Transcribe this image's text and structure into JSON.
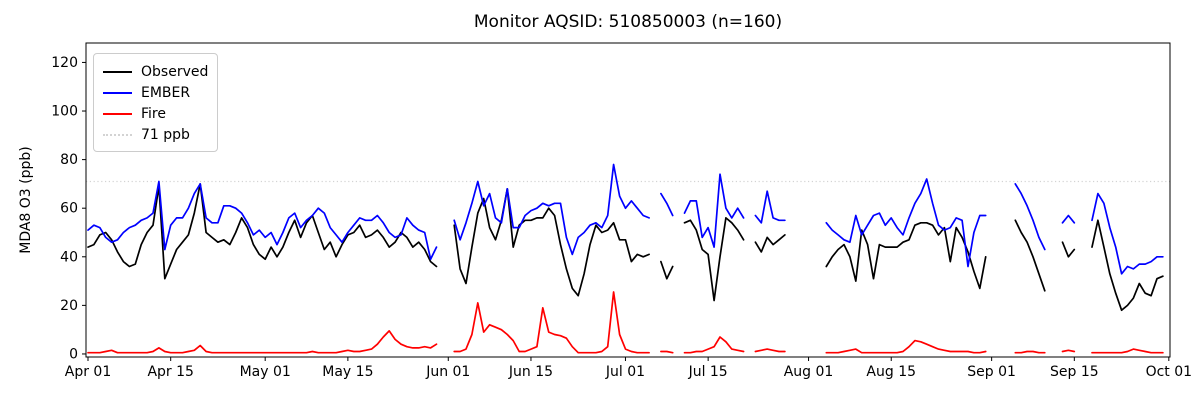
{
  "figure": {
    "title": "Monitor AQSID: 510850003 (n=160)",
    "ylabel": "MDA8 O3 (ppb)",
    "background": "#ffffff",
    "frame_color": "#000000"
  },
  "legend": {
    "position": "upper left",
    "items": [
      {
        "label": "Observed",
        "color": "#000000",
        "style": "solid"
      },
      {
        "label": "EMBER",
        "color": "#0000ff",
        "style": "solid"
      },
      {
        "label": "Fire",
        "color": "#ff0000",
        "style": "solid"
      },
      {
        "label": "71 ppb",
        "color": "#d3d3d3",
        "style": "dotted"
      }
    ]
  },
  "chart_data": {
    "type": "line",
    "title": "Monitor AQSID: 510850003 (n=160)",
    "xlabel": "",
    "ylabel": "MDA8 O3 (ppb)",
    "x_start": "Apr 01",
    "x_step": "1 day",
    "n_points": 183,
    "x_tick_days": [
      0,
      14,
      30,
      44,
      61,
      75,
      91,
      105,
      122,
      136,
      153,
      167,
      183
    ],
    "x_tick_labels": [
      "Apr 01",
      "Apr 15",
      "May 01",
      "May 15",
      "Jun 01",
      "Jun 15",
      "Jul 01",
      "Jul 15",
      "Aug 01",
      "Aug 15",
      "Sep 01",
      "Sep 15",
      "Oct 01"
    ],
    "y_ticks": [
      0,
      20,
      40,
      60,
      80,
      100,
      120
    ],
    "ylim": [
      -1.25,
      128
    ],
    "xlim_days": [
      -0.34,
      183.2
    ],
    "grid": false,
    "legend_position": "upper left",
    "threshold": {
      "value": 71,
      "label": "71 ppb",
      "color": "#d3d3d3",
      "style": "dotted"
    },
    "series": [
      {
        "name": "Observed",
        "color": "#000000",
        "values": [
          44,
          45,
          49,
          50,
          47,
          42,
          38,
          36,
          37,
          45,
          50,
          53,
          69,
          31,
          37,
          43,
          46,
          49,
          58,
          70,
          50,
          48,
          46,
          47,
          45,
          50,
          56,
          52,
          45,
          41,
          39,
          44,
          40,
          44,
          50,
          55,
          48,
          54,
          57,
          50,
          43,
          46,
          40,
          45,
          49,
          50,
          53,
          48,
          49,
          51,
          48,
          44,
          46,
          50,
          48,
          44,
          46,
          43,
          38,
          36,
          null,
          null,
          53,
          35,
          29,
          44,
          58,
          64,
          52,
          47,
          55,
          68,
          44,
          53,
          55,
          55,
          56,
          56,
          60,
          57,
          45,
          35,
          27,
          24,
          33,
          45,
          53,
          50,
          51,
          54,
          47,
          47,
          38,
          41,
          40,
          41,
          null,
          38,
          31,
          36,
          null,
          54,
          55,
          51,
          43,
          41,
          22,
          40,
          56,
          54,
          51,
          47,
          null,
          46,
          42,
          48,
          45,
          47,
          49,
          null,
          null,
          null,
          null,
          null,
          null,
          36,
          40,
          43,
          45,
          40,
          30,
          51,
          45,
          31,
          45,
          44,
          44,
          44,
          46,
          47,
          53,
          54,
          54,
          53,
          49,
          52,
          38,
          52,
          48,
          42,
          34,
          27,
          40,
          null,
          null,
          null,
          null,
          55,
          50,
          46,
          40,
          33,
          26,
          null,
          null,
          46,
          40,
          43,
          null,
          null,
          44,
          55,
          44,
          33,
          25,
          18,
          20,
          23,
          29,
          25,
          24,
          31,
          32
        ]
      },
      {
        "name": "EMBER",
        "color": "#0000ff",
        "values": [
          51,
          53,
          52,
          48,
          46,
          47,
          50,
          52,
          53,
          55,
          56,
          58,
          71,
          43,
          53,
          56,
          56,
          60,
          66,
          70,
          56,
          54,
          54,
          61,
          61,
          60,
          58,
          54,
          49,
          51,
          48,
          50,
          45,
          50,
          56,
          58,
          52,
          55,
          57,
          60,
          58,
          52,
          49,
          46,
          50,
          53,
          56,
          55,
          55,
          57,
          54,
          50,
          48,
          49,
          56,
          53,
          51,
          50,
          39,
          44,
          null,
          null,
          55,
          47,
          54,
          62,
          71,
          61,
          66,
          56,
          54,
          68,
          52,
          52,
          57,
          59,
          60,
          62,
          61,
          62,
          62,
          48,
          41,
          48,
          50,
          53,
          54,
          52,
          57,
          78,
          65,
          60,
          63,
          60,
          57,
          56,
          null,
          66,
          62,
          57,
          null,
          58,
          63,
          63,
          48,
          52,
          44,
          74,
          60,
          56,
          60,
          56,
          null,
          57,
          54,
          67,
          56,
          55,
          55,
          null,
          null,
          null,
          null,
          null,
          null,
          54,
          51,
          49,
          47,
          46,
          57,
          49,
          53,
          57,
          58,
          53,
          56,
          52,
          49,
          56,
          62,
          66,
          72,
          62,
          53,
          51,
          52,
          56,
          55,
          36,
          50,
          57,
          57,
          null,
          null,
          null,
          null,
          70,
          66,
          61,
          55,
          48,
          43,
          null,
          null,
          54,
          57,
          54,
          null,
          null,
          55,
          66,
          62,
          52,
          44,
          33,
          36,
          35,
          37,
          37,
          38,
          40,
          40
        ]
      },
      {
        "name": "Fire",
        "color": "#ff0000",
        "values": [
          0.5,
          0.5,
          0.5,
          1,
          1.5,
          0.5,
          0.5,
          0.5,
          0.5,
          0.5,
          0.5,
          1,
          2.5,
          1,
          0.5,
          0.5,
          0.5,
          1,
          1.5,
          3.5,
          1,
          0.5,
          0.5,
          0.5,
          0.5,
          0.5,
          0.5,
          0.5,
          0.5,
          0.5,
          0.5,
          0.5,
          0.5,
          0.5,
          0.5,
          0.5,
          0.5,
          0.5,
          1,
          0.5,
          0.5,
          0.5,
          0.5,
          1,
          1.5,
          1,
          1,
          1.5,
          2,
          4,
          7,
          9.5,
          6,
          4,
          3,
          2.5,
          2.5,
          3,
          2.5,
          4,
          null,
          null,
          1,
          1,
          2,
          8,
          21,
          9,
          12,
          11,
          10,
          8,
          5.5,
          1,
          1,
          2,
          3,
          19,
          9,
          8,
          7.5,
          6.5,
          3,
          0.5,
          0.5,
          0.5,
          0.5,
          1,
          3,
          25.5,
          8,
          2,
          1,
          0.5,
          0.5,
          0.5,
          null,
          1,
          1,
          0.5,
          null,
          0.5,
          0.5,
          1,
          1,
          2,
          3,
          7,
          5,
          2,
          1.5,
          1,
          null,
          1,
          1.5,
          2,
          1.5,
          1,
          1,
          null,
          null,
          null,
          null,
          null,
          null,
          0.5,
          0.5,
          0.5,
          1,
          1.5,
          2,
          0.5,
          0.5,
          0.5,
          0.5,
          0.5,
          0.5,
          0.5,
          1,
          3,
          5.5,
          5,
          4,
          3,
          2,
          1.5,
          1,
          1,
          1,
          1,
          0.5,
          0.5,
          1,
          null,
          null,
          null,
          null,
          0.5,
          0.5,
          1,
          1,
          0.5,
          0.5,
          null,
          null,
          1,
          1.5,
          1,
          null,
          null,
          0.5,
          0.5,
          0.5,
          0.5,
          0.5,
          0.5,
          1,
          2,
          1.5,
          1,
          0.5,
          0.5,
          0.5
        ]
      }
    ]
  }
}
